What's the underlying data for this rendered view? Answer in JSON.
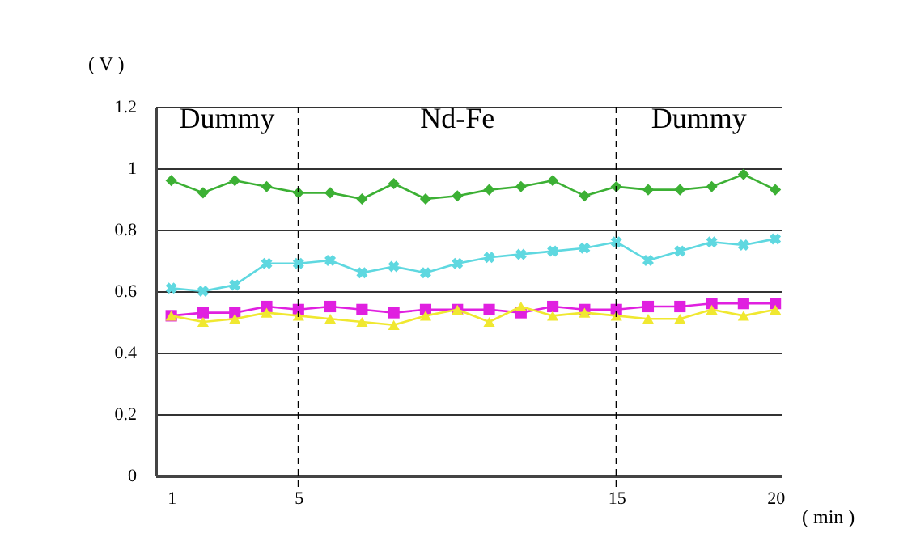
{
  "chart_data": {
    "type": "line",
    "xlabel": "( min )",
    "ylabel": "( V )",
    "x": [
      1,
      2,
      3,
      4,
      5,
      6,
      7,
      8,
      9,
      10,
      11,
      12,
      13,
      14,
      15,
      16,
      17,
      18,
      19,
      20
    ],
    "xlim": [
      0.5,
      20.2
    ],
    "xticks": [
      1,
      5,
      15,
      20
    ],
    "ylim": [
      0,
      1.2
    ],
    "yticks": [
      0,
      0.2,
      0.4,
      0.6,
      0.8,
      1,
      1.2
    ],
    "grid": "y",
    "line_style": "solid",
    "series": [
      {
        "color": "#3cb034",
        "marker": "diamond",
        "values": [
          0.96,
          0.92,
          0.96,
          0.94,
          0.92,
          0.92,
          0.9,
          0.95,
          0.9,
          0.91,
          0.93,
          0.94,
          0.96,
          0.91,
          0.94,
          0.93,
          0.93,
          0.94,
          0.98,
          0.93
        ]
      },
      {
        "color": "#5fd8e0",
        "marker": "cross",
        "values": [
          0.61,
          0.6,
          0.62,
          0.69,
          0.69,
          0.7,
          0.66,
          0.68,
          0.66,
          0.69,
          0.71,
          0.72,
          0.73,
          0.74,
          0.76,
          0.7,
          0.73,
          0.76,
          0.75,
          0.77
        ]
      },
      {
        "color": "#e020e0",
        "marker": "square",
        "values": [
          0.52,
          0.53,
          0.53,
          0.55,
          0.54,
          0.55,
          0.54,
          0.53,
          0.54,
          0.54,
          0.54,
          0.53,
          0.55,
          0.54,
          0.54,
          0.55,
          0.55,
          0.56,
          0.56,
          0.56
        ]
      },
      {
        "color": "#f0e830",
        "marker": "triangle",
        "values": [
          0.52,
          0.5,
          0.51,
          0.53,
          0.52,
          0.51,
          0.5,
          0.49,
          0.52,
          0.54,
          0.5,
          0.55,
          0.52,
          0.53,
          0.52,
          0.51,
          0.51,
          0.54,
          0.52,
          0.54
        ]
      }
    ],
    "ref_lines": [
      {
        "axis": "x",
        "value": 5,
        "line_style": "dashed",
        "color": "#000000"
      },
      {
        "axis": "x",
        "value": 15,
        "line_style": "dashed",
        "color": "#000000"
      }
    ],
    "annotations": [
      "Dummy",
      "Nd-Fe",
      "Dummy"
    ]
  }
}
